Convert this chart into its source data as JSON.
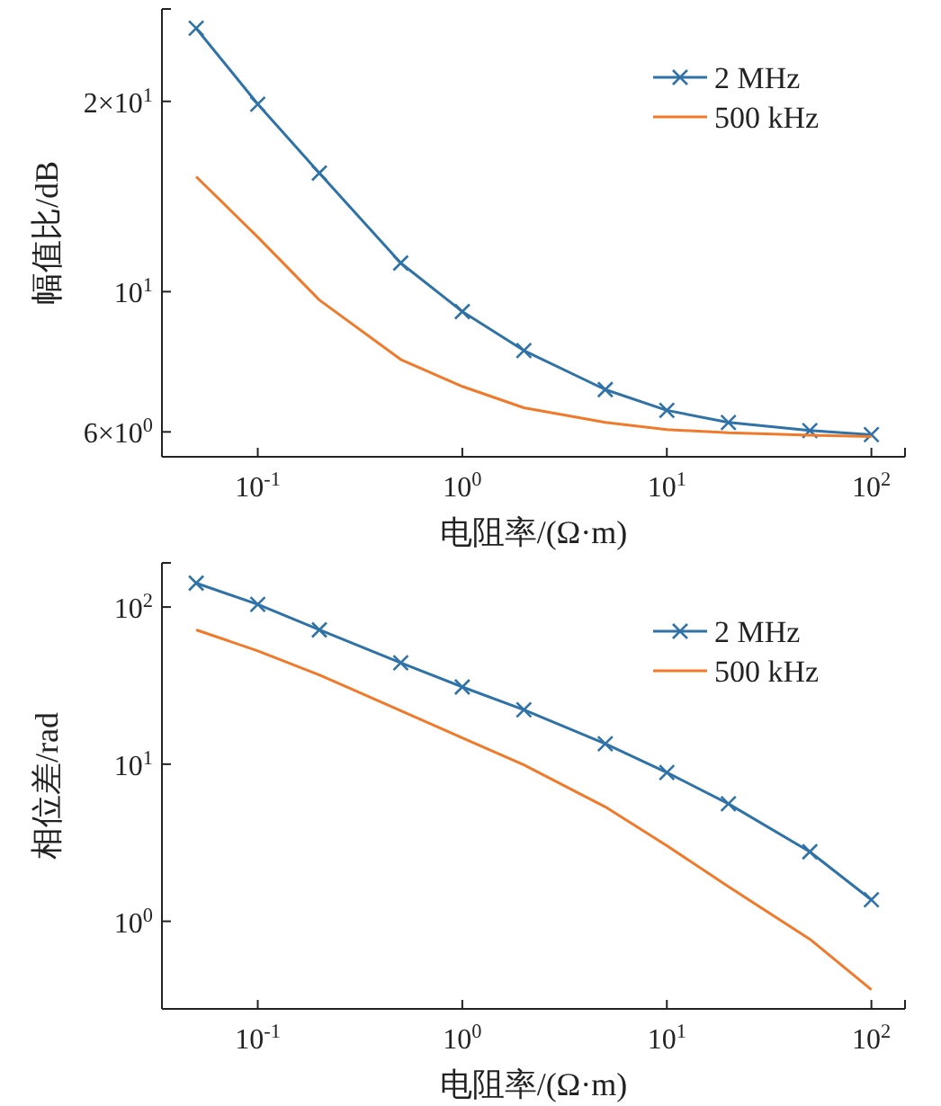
{
  "chart_data": [
    {
      "type": "line",
      "xlabel": "电阻率/(Ω·m)",
      "ylabel": "幅值比/dB",
      "log": "xy",
      "legend": "top right",
      "xlim": [
        0.034,
        146
      ],
      "ylim": [
        5.48,
        28.0
      ],
      "xticks": [
        {
          "value": 0.1,
          "label": "10$^{-1}$"
        },
        {
          "value": 1,
          "label": "10$^{0}$"
        },
        {
          "value": 10,
          "label": "10$^{1}$"
        },
        {
          "value": 100,
          "label": "10$^{2}$"
        }
      ],
      "yticks": [
        {
          "value": 6,
          "label": "6×10$^{0}$"
        },
        {
          "value": 10,
          "label": "10$^{1}$"
        },
        {
          "value": 20,
          "label": "2×10$^{1}$"
        }
      ],
      "x": [
        0.05,
        0.1,
        0.2,
        0.5,
        1,
        2,
        5,
        10,
        20,
        50,
        100
      ],
      "series": [
        {
          "name": "2 MHz",
          "color": "#2e72a8",
          "marker": "cross",
          "values": [
            26.1,
            19.8,
            15.4,
            11.1,
            9.3,
            8.07,
            7.0,
            6.49,
            6.21,
            6.03,
            5.94
          ]
        },
        {
          "name": "500 kHz",
          "color": "#f07a2a",
          "marker": "none",
          "values": [
            15.2,
            12.2,
            9.7,
            7.81,
            7.08,
            6.55,
            6.21,
            6.05,
            5.98,
            5.93,
            5.9
          ]
        }
      ]
    },
    {
      "type": "line",
      "xlabel": "电阻率/(Ω·m)",
      "ylabel": "相位差/rad",
      "log": "xy",
      "legend": "top right",
      "xlim": [
        0.034,
        146
      ],
      "ylim": [
        0.277,
        191
      ],
      "xticks": [
        {
          "value": 0.1,
          "label": "10$^{-1}$"
        },
        {
          "value": 1,
          "label": "10$^{0}$"
        },
        {
          "value": 10,
          "label": "10$^{1}$"
        },
        {
          "value": 100,
          "label": "10$^{2}$"
        }
      ],
      "yticks": [
        {
          "value": 1,
          "label": "10$^{0}$"
        },
        {
          "value": 10,
          "label": "10$^{1}$"
        },
        {
          "value": 100,
          "label": "10$^{2}$"
        }
      ],
      "x": [
        0.05,
        0.1,
        0.2,
        0.5,
        1,
        2,
        5,
        10,
        20,
        50,
        100
      ],
      "series": [
        {
          "name": "2 MHz",
          "color": "#2e72a8",
          "marker": "cross",
          "values": [
            142,
            104,
            71.6,
            44.2,
            31.0,
            22.2,
            13.5,
            8.85,
            5.6,
            2.77,
            1.37
          ]
        },
        {
          "name": "500 kHz",
          "color": "#f07a2a",
          "marker": "none",
          "values": [
            71.6,
            52.6,
            37.0,
            21.9,
            14.7,
            9.9,
            5.35,
            3.03,
            1.66,
            0.77,
            0.367
          ]
        }
      ]
    }
  ]
}
